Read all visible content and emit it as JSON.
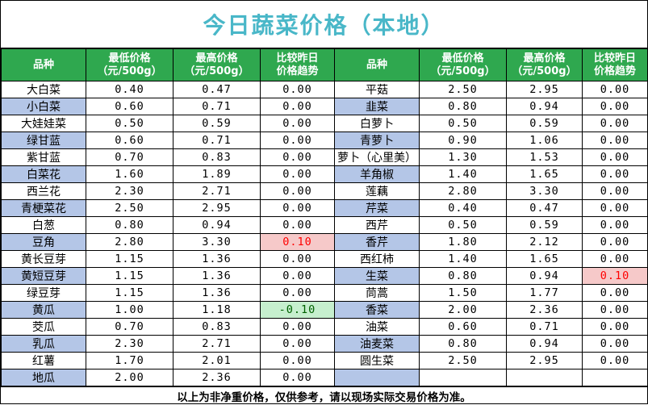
{
  "title": "今日蔬菜价格（本地）",
  "headers": {
    "name": "品种",
    "min_line1": "最低价格",
    "min_line2": "（元/500g）",
    "max_line1": "最高价格",
    "max_line2": "（元/500g）",
    "change_line1": "比较昨日",
    "change_line2": "价格趋势"
  },
  "left": [
    {
      "name": "大白菜",
      "min": "0.40",
      "max": "0.47",
      "change": "0.00"
    },
    {
      "name": "小白菜",
      "min": "0.60",
      "max": "0.71",
      "change": "0.00"
    },
    {
      "name": "大娃娃菜",
      "min": "0.50",
      "max": "0.59",
      "change": "0.00"
    },
    {
      "name": "绿甘蓝",
      "min": "0.60",
      "max": "0.71",
      "change": "0.00"
    },
    {
      "name": "紫甘蓝",
      "min": "0.70",
      "max": "0.83",
      "change": "0.00"
    },
    {
      "name": "白菜花",
      "min": "1.60",
      "max": "1.89",
      "change": "0.00"
    },
    {
      "name": "西兰花",
      "min": "2.30",
      "max": "2.71",
      "change": "0.00"
    },
    {
      "name": "青梗菜花",
      "min": "2.50",
      "max": "2.95",
      "change": "0.00"
    },
    {
      "name": "白葱",
      "min": "0.80",
      "max": "0.94",
      "change": "0.00"
    },
    {
      "name": "豆角",
      "min": "2.80",
      "max": "3.30",
      "change": "0.10"
    },
    {
      "name": "黄长豆芽",
      "min": "1.15",
      "max": "1.36",
      "change": "0.00"
    },
    {
      "name": "黄短豆芽",
      "min": "1.15",
      "max": "1.36",
      "change": "0.00"
    },
    {
      "name": "绿豆芽",
      "min": "1.15",
      "max": "1.36",
      "change": "0.00"
    },
    {
      "name": "黄瓜",
      "min": "1.00",
      "max": "1.18",
      "change": "-0.10"
    },
    {
      "name": "茭瓜",
      "min": "0.70",
      "max": "0.83",
      "change": "0.00"
    },
    {
      "name": "乳瓜",
      "min": "2.30",
      "max": "2.71",
      "change": "0.00"
    },
    {
      "name": "红薯",
      "min": "1.70",
      "max": "2.01",
      "change": "0.00"
    },
    {
      "name": "地瓜",
      "min": "2.00",
      "max": "2.36",
      "change": "0.00"
    }
  ],
  "right": [
    {
      "name": "平菇",
      "min": "2.50",
      "max": "2.95",
      "change": "0.00"
    },
    {
      "name": "韭菜",
      "min": "0.80",
      "max": "0.94",
      "change": "0.00"
    },
    {
      "name": "白萝卜",
      "min": "0.50",
      "max": "0.59",
      "change": "0.00"
    },
    {
      "name": "青萝卜",
      "min": "0.90",
      "max": "1.06",
      "change": "0.00"
    },
    {
      "name": "萝卜（心里美）",
      "min": "1.30",
      "max": "1.53",
      "change": "0.00"
    },
    {
      "name": "羊角椒",
      "min": "1.40",
      "max": "1.65",
      "change": "0.00"
    },
    {
      "name": "莲藕",
      "min": "2.80",
      "max": "3.30",
      "change": "0.00"
    },
    {
      "name": "芹菜",
      "min": "0.40",
      "max": "0.47",
      "change": "0.00"
    },
    {
      "name": "西芹",
      "min": "0.50",
      "max": "0.59",
      "change": "0.00"
    },
    {
      "name": "香芹",
      "min": "1.80",
      "max": "2.12",
      "change": "0.00"
    },
    {
      "name": "西红柿",
      "min": "1.40",
      "max": "1.65",
      "change": "0.00"
    },
    {
      "name": "生菜",
      "min": "0.80",
      "max": "0.94",
      "change": "0.10"
    },
    {
      "name": "茼蒿",
      "min": "1.50",
      "max": "1.77",
      "change": "0.00"
    },
    {
      "name": "香菜",
      "min": "2.00",
      "max": "2.36",
      "change": "0.00"
    },
    {
      "name": "油菜",
      "min": "0.60",
      "max": "0.71",
      "change": "0.00"
    },
    {
      "name": "油麦菜",
      "min": "0.80",
      "max": "0.94",
      "change": "0.00"
    },
    {
      "name": "圆生菜",
      "min": "2.50",
      "max": "2.95",
      "change": "0.00"
    },
    {
      "name": "",
      "min": "",
      "max": "",
      "change": ""
    }
  ],
  "colors": {
    "title": "#49b7c8",
    "header_bg": "#2fa84f",
    "alt_row_bg": "#b4c6e7",
    "up_bg": "#f6c9c9",
    "up_text": "#ff0000",
    "down_bg": "#c6efce",
    "down_text": "#006100"
  },
  "footer": "以上为非净重价格，仅供参考，请以现场实际交易价格为准。"
}
